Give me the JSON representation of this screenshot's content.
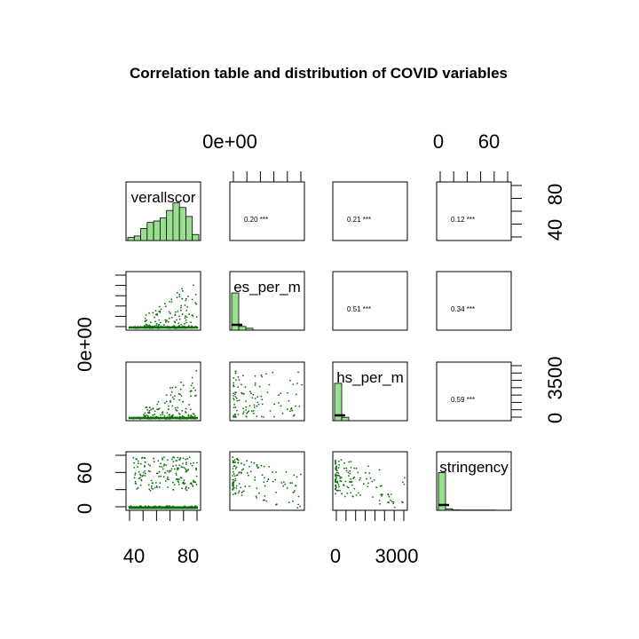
{
  "chart_data": {
    "type": "scatter",
    "title": "Correlation table and distribution of COVID variables",
    "variables": [
      "overallscore",
      "cases_per_m",
      "deaths_per_m",
      "stringency"
    ],
    "diagonal_labels": [
      "verallscor",
      "es_per_m",
      "hs_per_m",
      "stringency"
    ],
    "histogram_color": "#98e08f",
    "point_color": "#0a6e0a",
    "correlations": [
      {
        "row": 0,
        "col": 1,
        "label": "0.20 ***"
      },
      {
        "row": 0,
        "col": 2,
        "label": "0.21 ***"
      },
      {
        "row": 0,
        "col": 3,
        "label": "0.12 ***"
      },
      {
        "row": 1,
        "col": 2,
        "label": "0.51 ***"
      },
      {
        "row": 1,
        "col": 3,
        "label": "0.34 ***"
      },
      {
        "row": 2,
        "col": 3,
        "label": "0.59 ***"
      }
    ],
    "histograms": [
      {
        "var": "overallscore",
        "counts": [
          2,
          3,
          8,
          12,
          13,
          15,
          20,
          25,
          22,
          16,
          4
        ],
        "max": 26
      },
      {
        "var": "cases_per_m",
        "counts": [
          20,
          2,
          1,
          0,
          0,
          0,
          0,
          0,
          0,
          0
        ],
        "max": 21
      },
      {
        "var": "deaths_per_m",
        "counts": [
          22,
          2,
          0,
          0,
          0,
          0,
          0,
          0,
          0,
          0
        ],
        "max": 23
      },
      {
        "var": "stringency",
        "counts": [
          28,
          1,
          0.3,
          0.2,
          0.2,
          0.2,
          0.2,
          0.2,
          0.1,
          0.1
        ],
        "max": 29
      }
    ],
    "axis_labels": {
      "top": [
        {
          "col": 1,
          "ticks": [
            "0e+00"
          ]
        },
        {
          "col": 3,
          "ticks": [
            "0",
            "60"
          ]
        }
      ],
      "right": [
        {
          "row": 0,
          "ticks": [
            "40",
            "80"
          ]
        },
        {
          "row": 2,
          "ticks": [
            "0",
            "3500"
          ]
        }
      ],
      "left": [
        {
          "row": 1,
          "ticks": [
            "0e+00"
          ]
        },
        {
          "row": 3,
          "ticks": [
            "0",
            "60"
          ]
        }
      ],
      "bottom": [
        {
          "col": 0,
          "ticks": [
            "40",
            "80"
          ]
        },
        {
          "col": 2,
          "ticks": [
            "0",
            "3000"
          ]
        }
      ]
    }
  }
}
